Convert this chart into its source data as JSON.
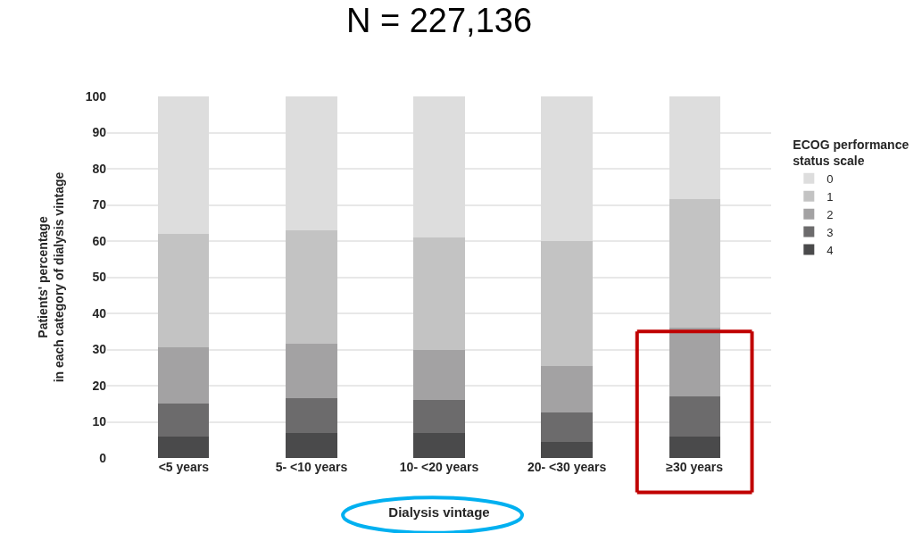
{
  "chart_data": {
    "type": "bar",
    "title": "N = 227,136",
    "xlabel": "Dialysis vintage",
    "ylabel": "Patients' percentage\nin each category of dialysis vintage",
    "legend_title": "ECOG performance\nstatus scale",
    "categories": [
      "<5 years",
      "5- <10 years",
      "10- <20 years",
      "20- <30 years",
      "≥30 years"
    ],
    "stacked": true,
    "series": [
      {
        "name": "4",
        "color": "#4a4a4b",
        "values": [
          6,
          7,
          7,
          4.5,
          6
        ]
      },
      {
        "name": "3",
        "color": "#6c6b6c",
        "values": [
          9,
          9.5,
          9,
          8,
          11
        ]
      },
      {
        "name": "2",
        "color": "#a3a2a3",
        "values": [
          15.5,
          15,
          14,
          13,
          19
        ]
      },
      {
        "name": "1",
        "color": "#c3c3c3",
        "values": [
          31.5,
          31.5,
          31,
          34.5,
          35.5
        ]
      },
      {
        "name": "0",
        "color": "#dddddd",
        "values": [
          38,
          37,
          39,
          40,
          28.5
        ]
      }
    ],
    "ylim": [
      0,
      100
    ],
    "yticks": [
      0,
      10,
      20,
      30,
      40,
      50,
      60,
      70,
      80,
      90,
      100
    ],
    "grid": "y",
    "legend": "right"
  }
}
